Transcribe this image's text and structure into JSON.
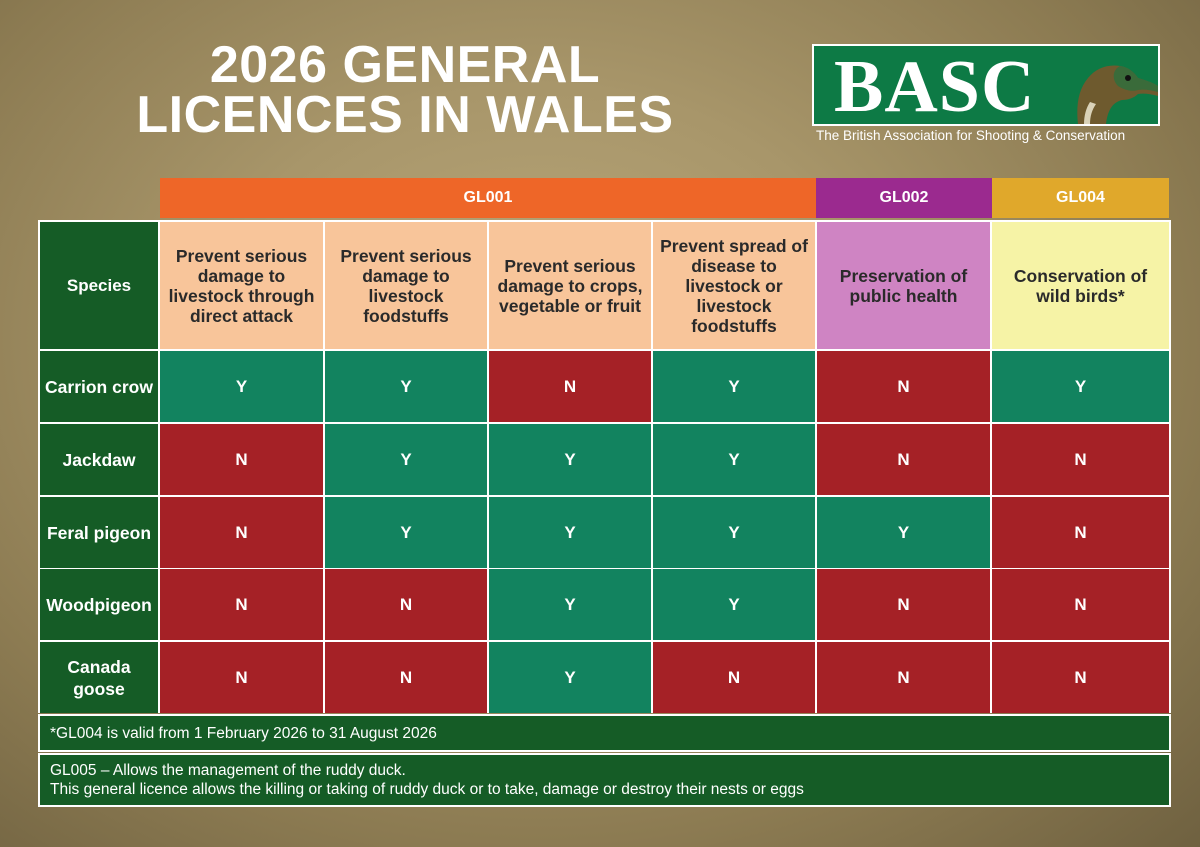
{
  "title": {
    "line1": "2026 GENERAL",
    "line2": "LICENCES IN WALES"
  },
  "logo": {
    "name": "BASC",
    "subtitle": "The British Association for Shooting & Conservation",
    "icon": "duck-head-icon"
  },
  "groups": [
    "GL001",
    "GL002",
    "GL004"
  ],
  "species_header": "Species",
  "purposes": [
    "Prevent serious damage to livestock through direct attack",
    "Prevent serious damage to livestock foodstuffs",
    "Prevent serious damage to crops, vegetable or fruit",
    "Prevent spread of disease to livestock or livestock foodstuffs",
    "Preservation of public health",
    "Conservation of wild birds*"
  ],
  "rows": [
    {
      "species": "Carrion crow",
      "values": [
        "Y",
        "Y",
        "N",
        "Y",
        "N",
        "Y"
      ]
    },
    {
      "species": "Jackdaw",
      "values": [
        "N",
        "Y",
        "Y",
        "Y",
        "N",
        "N"
      ]
    },
    {
      "species": "Feral pigeon",
      "values": [
        "N",
        "Y",
        "Y",
        "Y",
        "Y",
        "N"
      ]
    },
    {
      "species": "Woodpigeon",
      "values": [
        "N",
        "N",
        "Y",
        "Y",
        "N",
        "N"
      ]
    },
    {
      "species": "Canada goose",
      "values": [
        "N",
        "N",
        "Y",
        "N",
        "N",
        "N"
      ]
    }
  ],
  "notes": {
    "gl004": "*GL004 is valid from 1 February 2026 to 31 August 2026",
    "gl005_line1": "GL005 – Allows the management of the ruddy duck.",
    "gl005_line2": "This general licence allows the killing or taking of ruddy duck or to take, damage or destroy their nests or eggs"
  },
  "colors": {
    "yes": "#12835f",
    "no": "#a52126",
    "dark_green": "#155c26",
    "gl001": "#ee6628",
    "gl002": "#9b2a8f",
    "gl004": "#e0a82b"
  }
}
